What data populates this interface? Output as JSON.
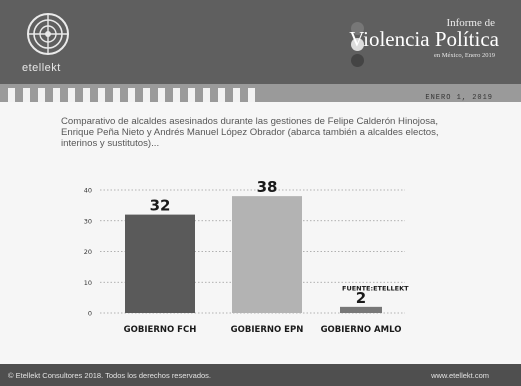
{
  "header": {
    "brand": "etellekt",
    "report_kicker": "Informe de",
    "report_title": "Violencia Política",
    "report_subtitle": "en México, Enero 2019",
    "dot_colors": [
      "#777777",
      "#dcdcdc",
      "#444444"
    ]
  },
  "date_label": "ENERO 1, 2019",
  "description": "Comparativo de alcaldes asesinados durante las gestiones de Felipe Calderón Hinojosa, Enrique Peña Nieto y Andrés Manuel López Obrador (abarca también a alcaldes electos, interinos y sustitutos)...",
  "chart_data": {
    "type": "bar",
    "categories": [
      "GOBIERNO FCH",
      "GOBIERNO EPN",
      "GOBIERNO AMLO"
    ],
    "values": [
      32,
      38,
      2
    ],
    "ylim": [
      0,
      40
    ],
    "yticks": [
      0,
      10,
      20,
      30,
      40
    ],
    "grid": true,
    "annotation": "FUENTE:ETELLEKT",
    "bar_colors": [
      "#5a5a5a",
      "#b3b3b3",
      "#777777"
    ]
  },
  "footer": {
    "copyright": "© Etellekt Consultores 2018. Todos los derechos reservados.",
    "website": "www.etellekt.com"
  }
}
